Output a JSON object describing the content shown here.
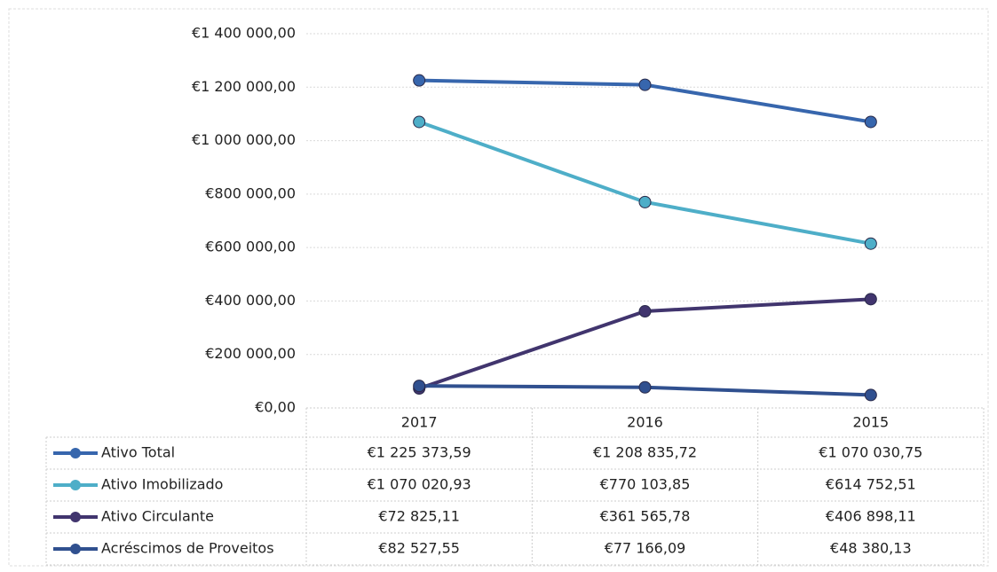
{
  "chart_data": {
    "type": "line",
    "categories": [
      "2017",
      "2016",
      "2015"
    ],
    "series": [
      {
        "name": "Ativo Total",
        "color": "#3766ad",
        "values": [
          1225373.59,
          1208835.72,
          1070030.75
        ],
        "value_labels": [
          "€1 225 373,59",
          "€1 208 835,72",
          "€1 070 030,75"
        ]
      },
      {
        "name": "Ativo Imobilizado",
        "color": "#4eaec8",
        "values": [
          1070020.93,
          770103.85,
          614752.51
        ],
        "value_labels": [
          "€1 070 020,93",
          "€770 103,85",
          "€614 752,51"
        ]
      },
      {
        "name": "Ativo Circulante",
        "color": "#41356e",
        "values": [
          72825.11,
          361565.78,
          406898.11
        ],
        "value_labels": [
          "€72 825,11",
          "€361 565,78",
          "€406 898,11"
        ]
      },
      {
        "name": "Acréscimos de Proveitos",
        "color": "#30508f",
        "values": [
          82527.55,
          77166.09,
          48380.13
        ],
        "value_labels": [
          "€82 527,55",
          "€77 166,09",
          "€48 380,13"
        ]
      }
    ],
    "ylim": [
      0,
      1400000
    ],
    "yticks": [
      {
        "value": 0,
        "label": "€0,00"
      },
      {
        "value": 200000,
        "label": "€200 000,00"
      },
      {
        "value": 400000,
        "label": "€400 000,00"
      },
      {
        "value": 600000,
        "label": "€600 000,00"
      },
      {
        "value": 800000,
        "label": "€800 000,00"
      },
      {
        "value": 1000000,
        "label": "€1 000 000,00"
      },
      {
        "value": 1200000,
        "label": "€1 200 000,00"
      },
      {
        "value": 1400000,
        "label": "€1 400 000,00"
      }
    ],
    "grid": true
  }
}
